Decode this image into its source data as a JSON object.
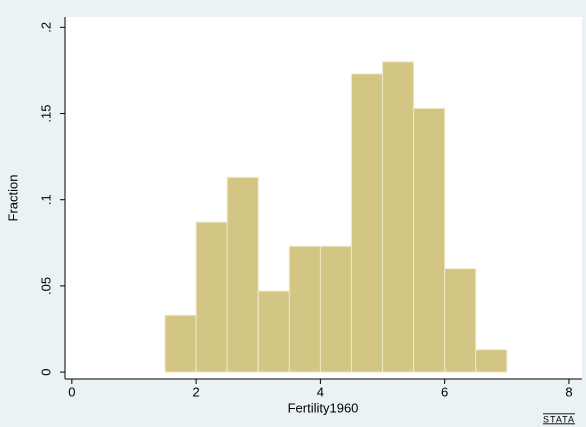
{
  "chart_data": {
    "type": "histogram",
    "x_label": "Fertility1960",
    "y_label": "Fraction",
    "logo": "STATA",
    "bins": [
      1.5,
      2,
      2.5,
      3,
      3.5,
      4,
      4.5,
      5,
      5.5,
      6,
      6.5,
      7
    ],
    "values": [
      0.033,
      0.087,
      0.113,
      0.047,
      0.073,
      0.073,
      0.173,
      0.18,
      0.153,
      0.06,
      0.013
    ],
    "color": "#d3c684",
    "xlim": [
      -0.11,
      8.21
    ],
    "xticks": [
      0,
      2,
      4,
      6,
      8
    ],
    "ylim": [
      -0.004,
      0.206
    ],
    "yticks": [
      0,
      {
        "value": 0.05,
        "label": ".05"
      },
      {
        "value": 0.1,
        "label": ".1"
      },
      {
        "value": 0.15,
        "label": ".15"
      },
      {
        "value": 0.2,
        "label": ".2"
      }
    ],
    "grid": false
  }
}
